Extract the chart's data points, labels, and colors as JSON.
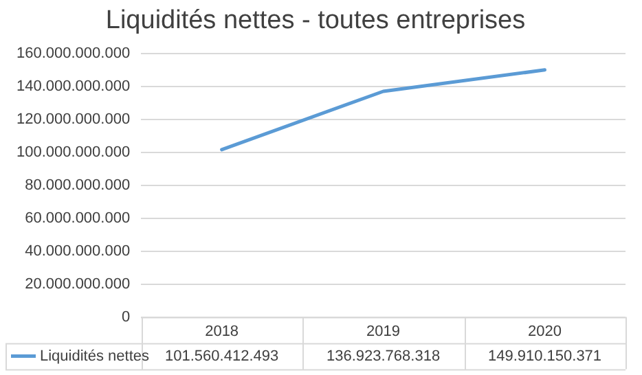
{
  "chart_data": {
    "type": "line",
    "title": "Liquidités nettes - toutes entreprises",
    "categories": [
      "2018",
      "2019",
      "2020"
    ],
    "series": [
      {
        "name": "Liquidités nettes",
        "color": "#5b9bd5",
        "values": [
          101560412493,
          136923768318,
          149910150371
        ],
        "value_labels": [
          "101.560.412.493",
          "136.923.768.318",
          "149.910.150.371"
        ]
      }
    ],
    "ylim": [
      0,
      160000000000
    ],
    "yticks": [
      {
        "value": 0,
        "label": "0"
      },
      {
        "value": 20000000000,
        "label": "20.000.000.000"
      },
      {
        "value": 40000000000,
        "label": "40.000.000.000"
      },
      {
        "value": 60000000000,
        "label": "60.000.000.000"
      },
      {
        "value": 80000000000,
        "label": "80.000.000.000"
      },
      {
        "value": 100000000000,
        "label": "100.000.000.000"
      },
      {
        "value": 120000000000,
        "label": "120.000.000.000"
      },
      {
        "value": 140000000000,
        "label": "140.000.000.000"
      },
      {
        "value": 160000000000,
        "label": "160.000.000.000"
      }
    ],
    "grid": "y",
    "legend": "bottom",
    "marker": "none",
    "line_style": "solid"
  }
}
